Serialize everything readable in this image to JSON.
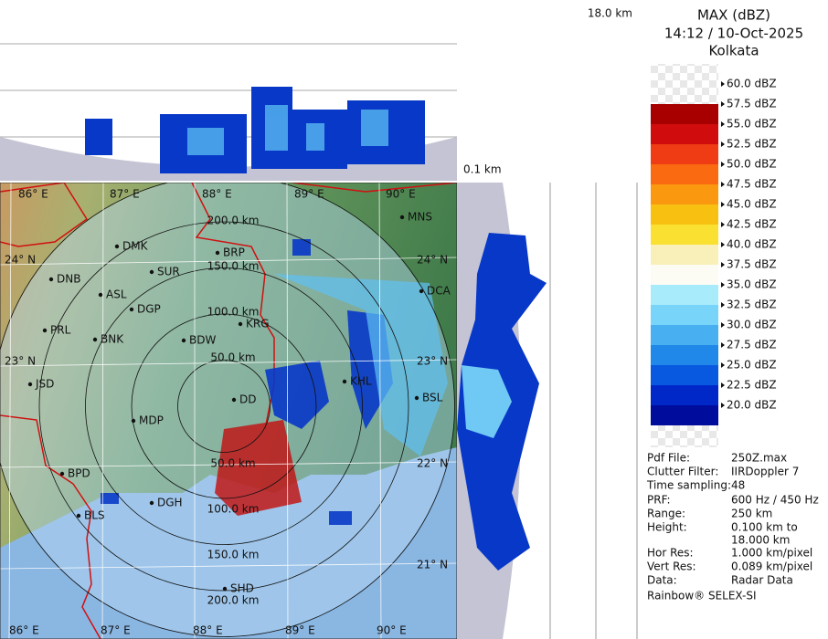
{
  "header": {
    "title": "MAX (dBZ)",
    "time": "14:12 / 10-Oct-2025",
    "site": "Kolkata"
  },
  "height_labels": {
    "top": "18.0 km",
    "bottom": "0.1 km"
  },
  "legend": {
    "labels": [
      "60.0 dBZ",
      "57.5 dBZ",
      "55.0 dBZ",
      "52.5 dBZ",
      "50.0 dBZ",
      "47.5 dBZ",
      "45.0 dBZ",
      "42.5 dBZ",
      "40.0 dBZ",
      "37.5 dBZ",
      "35.0 dBZ",
      "32.5 dBZ",
      "30.0 dBZ",
      "27.5 dBZ",
      "25.0 dBZ",
      "22.5 dBZ",
      "20.0 dBZ"
    ],
    "colors": [
      "#a80000",
      "#d00c0c",
      "#f03c14",
      "#fa6a10",
      "#fa9810",
      "#f8c010",
      "#fae030",
      "#f8f0b8",
      "#fcfcf4",
      "#a8ecfc",
      "#78d4f8",
      "#48b0f0",
      "#2088e8",
      "#0858e0",
      "#0028c8",
      "#000c9c"
    ]
  },
  "info": {
    "rows": [
      [
        "Pdf File:",
        "250Z.max"
      ],
      [
        "Clutter Filter:",
        "IIRDoppler 7"
      ],
      [
        "Time sampling:",
        "48"
      ],
      [
        "PRF:",
        "600 Hz / 450 Hz"
      ],
      [
        "Range:",
        "250 km"
      ],
      [
        "Height:",
        "0.100 km to"
      ],
      [
        "",
        "18.000 km"
      ],
      [
        "Hor Res:",
        "1.000 km/pixel"
      ],
      [
        "Vert Res:",
        "0.089 km/pixel"
      ],
      [
        "Data:",
        "Radar Data"
      ]
    ],
    "footer": "Rainbow® SELEX-SI"
  },
  "map": {
    "lon_labels": [
      "86° E",
      "87° E",
      "88° E",
      "89° E",
      "90° E"
    ],
    "lat_labels": [
      "24° N",
      "23° N",
      "22° N",
      "21° N"
    ],
    "range_labels": [
      "50.0 km",
      "100.0 km",
      "150.0 km",
      "200.0 km"
    ],
    "cities": [
      "DMK",
      "BRP",
      "MNS",
      "DNB",
      "SUR",
      "ASL",
      "DGP",
      "DCA",
      "KRG",
      "PRL",
      "BNK",
      "BDW",
      "JSD",
      "KHL",
      "BSL",
      "DD",
      "MDP",
      "BPD",
      "DGH",
      "BLS",
      "SHD"
    ]
  }
}
